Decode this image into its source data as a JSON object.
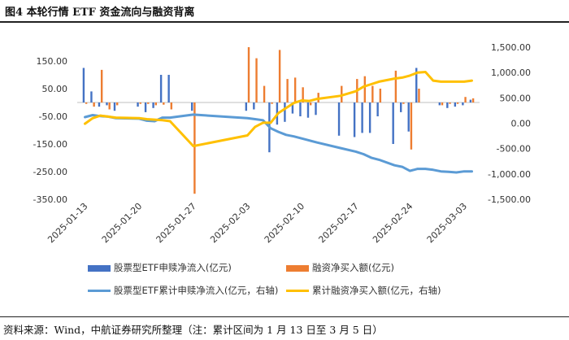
{
  "figure": {
    "title": "图4  本轮行情 ETF 资金流向与融资背离",
    "source": "资料来源：Wind，中航证券研究所整理（注：累计区间为 1 月 13 日至 3 月 5 日）"
  },
  "chart_data": {
    "type": "bar+line",
    "left_axis": {
      "ticks": [
        "150.00",
        "50.00",
        "-50.00",
        "-150.00",
        "-250.00",
        "-350.00"
      ],
      "range": [
        -350,
        200
      ]
    },
    "right_axis": {
      "ticks": [
        "1,500.00",
        "1,000.00",
        "500.00",
        "0.00",
        "-500.00",
        "-1,000.00",
        "-1,500.00"
      ],
      "range": [
        -1500,
        1500
      ]
    },
    "x_tick_labels": [
      "2025-01-13",
      "2025-01-20",
      "2025-01-27",
      "2025-02-03",
      "2025-02-10",
      "2025-02-17",
      "2025-02-24",
      "2025-03-03"
    ],
    "x_tick_days": [
      0,
      7,
      14,
      21,
      28,
      35,
      42,
      49
    ],
    "bar_series": [
      {
        "name": "股票型ETF申赎净流入(亿元)",
        "color": "#4472C4",
        "points": [
          [
            0,
            125
          ],
          [
            1,
            40
          ],
          [
            2,
            -15
          ],
          [
            3,
            -10
          ],
          [
            4,
            -30
          ],
          [
            7,
            -15
          ],
          [
            8,
            -35
          ],
          [
            9,
            -20
          ],
          [
            10,
            100
          ],
          [
            11,
            100
          ],
          [
            14,
            -30
          ],
          [
            21,
            -30
          ],
          [
            22,
            -25
          ],
          [
            24,
            -180
          ],
          [
            25,
            -80
          ],
          [
            26,
            -70
          ],
          [
            27,
            -40
          ],
          [
            28,
            -50
          ],
          [
            29,
            -55
          ],
          [
            30,
            -45
          ],
          [
            33,
            -120
          ],
          [
            35,
            -125
          ],
          [
            36,
            -110
          ],
          [
            37,
            -110
          ],
          [
            38,
            -50
          ],
          [
            40,
            -150
          ],
          [
            41,
            -35
          ],
          [
            42,
            -105
          ],
          [
            43,
            125
          ],
          [
            46,
            -10
          ],
          [
            47,
            -20
          ],
          [
            48,
            -15
          ],
          [
            49,
            -10
          ],
          [
            50,
            10
          ]
        ]
      },
      {
        "name": "融资净买入额(亿元)",
        "color": "#ED7D31",
        "points": [
          [
            0,
            -5
          ],
          [
            1,
            -15
          ],
          [
            2,
            118
          ],
          [
            3,
            -25
          ],
          [
            4,
            -10
          ],
          [
            7,
            -5
          ],
          [
            8,
            -5
          ],
          [
            9,
            -10
          ],
          [
            10,
            -8
          ],
          [
            11,
            -25
          ],
          [
            14,
            -330
          ],
          [
            21,
            200
          ],
          [
            22,
            160
          ],
          [
            23,
            60
          ],
          [
            24,
            -5
          ],
          [
            25,
            190
          ],
          [
            26,
            85
          ],
          [
            27,
            90
          ],
          [
            28,
            55
          ],
          [
            29,
            -10
          ],
          [
            30,
            35
          ],
          [
            33,
            60
          ],
          [
            35,
            85
          ],
          [
            36,
            95
          ],
          [
            37,
            60
          ],
          [
            38,
            50
          ],
          [
            40,
            115
          ],
          [
            41,
            -5
          ],
          [
            42,
            -170
          ],
          [
            43,
            50
          ],
          [
            46,
            -10
          ],
          [
            47,
            -5
          ],
          [
            48,
            -5
          ],
          [
            49,
            20
          ],
          [
            50,
            15
          ]
        ]
      }
    ],
    "line_series": [
      {
        "name": "股票型ETF累计申赎净流入(亿元，右轴)",
        "color": "#5B9BD5",
        "points": [
          [
            0,
            120
          ],
          [
            1,
            160
          ],
          [
            2,
            140
          ],
          [
            3,
            130
          ],
          [
            4,
            100
          ],
          [
            7,
            90
          ],
          [
            8,
            50
          ],
          [
            9,
            40
          ],
          [
            10,
            110
          ],
          [
            11,
            110
          ],
          [
            14,
            170
          ],
          [
            21,
            100
          ],
          [
            22,
            80
          ],
          [
            23,
            60
          ],
          [
            24,
            -100
          ],
          [
            25,
            -170
          ],
          [
            26,
            -230
          ],
          [
            27,
            -260
          ],
          [
            28,
            -300
          ],
          [
            29,
            -340
          ],
          [
            30,
            -380
          ],
          [
            33,
            -490
          ],
          [
            35,
            -560
          ],
          [
            36,
            -610
          ],
          [
            37,
            -680
          ],
          [
            38,
            -720
          ],
          [
            40,
            -830
          ],
          [
            41,
            -860
          ],
          [
            42,
            -940
          ],
          [
            43,
            -900
          ],
          [
            44,
            -900
          ],
          [
            45,
            -920
          ],
          [
            46,
            -950
          ],
          [
            47,
            -960
          ],
          [
            48,
            -970
          ],
          [
            49,
            -950
          ],
          [
            50,
            -950
          ]
        ]
      },
      {
        "name": "累计融资净买入额(亿元，右轴)",
        "color": "#FFC000",
        "points": [
          [
            0,
            -10
          ],
          [
            1,
            100
          ],
          [
            2,
            150
          ],
          [
            3,
            130
          ],
          [
            4,
            110
          ],
          [
            7,
            100
          ],
          [
            8,
            80
          ],
          [
            9,
            70
          ],
          [
            10,
            60
          ],
          [
            11,
            40
          ],
          [
            14,
            -450
          ],
          [
            21,
            -240
          ],
          [
            22,
            -70
          ],
          [
            23,
            10
          ],
          [
            24,
            10
          ],
          [
            25,
            200
          ],
          [
            26,
            300
          ],
          [
            27,
            400
          ],
          [
            28,
            450
          ],
          [
            29,
            440
          ],
          [
            30,
            480
          ],
          [
            33,
            540
          ],
          [
            35,
            630
          ],
          [
            36,
            720
          ],
          [
            37,
            770
          ],
          [
            38,
            820
          ],
          [
            40,
            880
          ],
          [
            41,
            900
          ],
          [
            42,
            940
          ],
          [
            43,
            1000
          ],
          [
            44,
            1010
          ],
          [
            45,
            840
          ],
          [
            46,
            820
          ],
          [
            47,
            820
          ],
          [
            48,
            820
          ],
          [
            49,
            820
          ],
          [
            50,
            840
          ]
        ]
      }
    ],
    "legend": [
      {
        "kind": "bar",
        "label": "股票型ETF申赎净流入(亿元)",
        "color": "#4472C4"
      },
      {
        "kind": "bar",
        "label": "融资净买入额(亿元)",
        "color": "#ED7D31"
      },
      {
        "kind": "line",
        "label": "股票型ETF累计申赎净流入(亿元，右轴)",
        "color": "#5B9BD5"
      },
      {
        "kind": "line",
        "label": "累计融资净买入额(亿元，右轴)",
        "color": "#FFC000"
      }
    ]
  }
}
